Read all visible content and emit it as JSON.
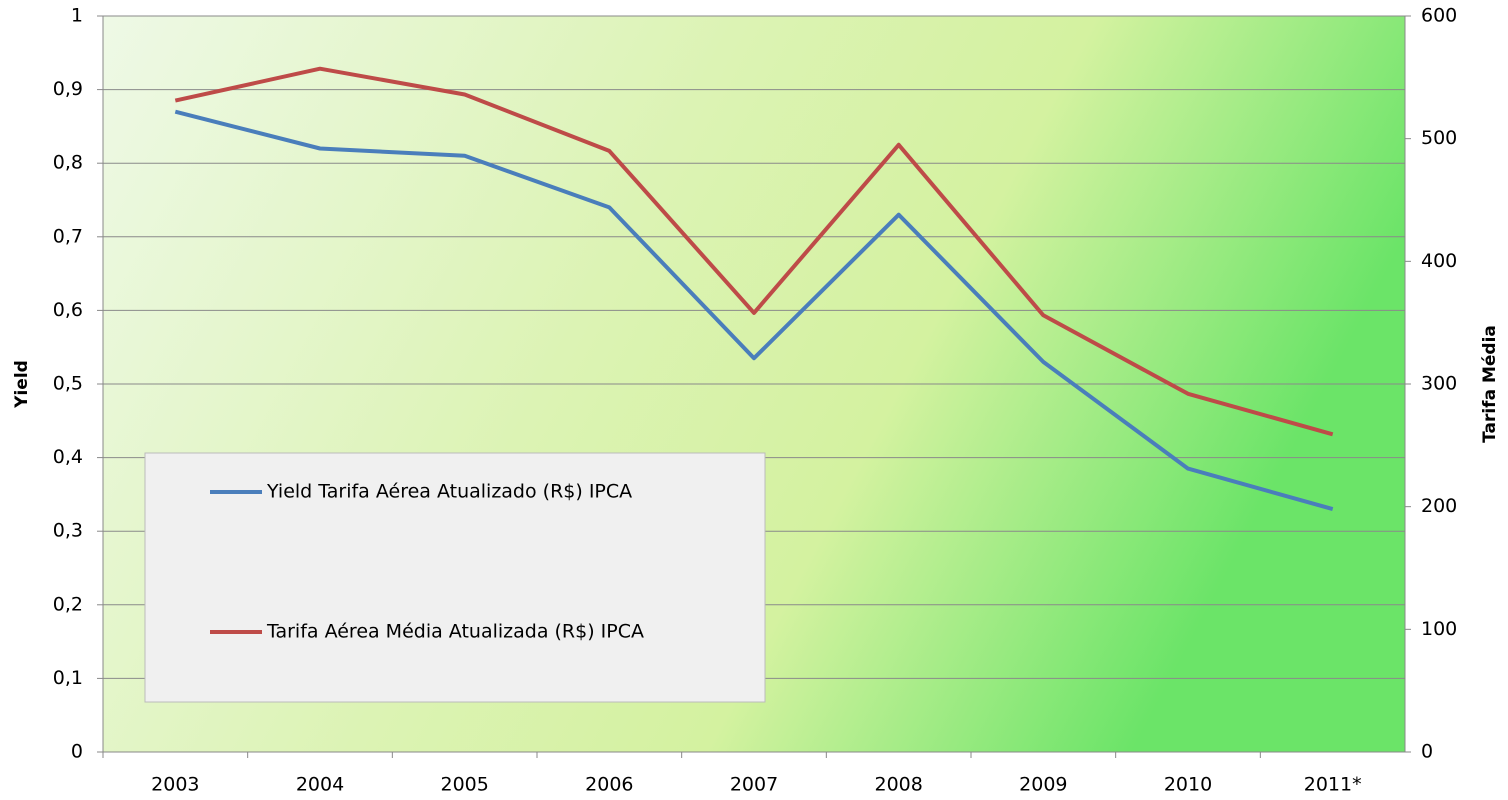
{
  "chart_data": {
    "type": "line",
    "ylabel": "Yield",
    "y2label": "Tarifa Média",
    "categories": [
      "2003",
      "2004",
      "2005",
      "2006",
      "2007",
      "2008",
      "2009",
      "2010",
      "2011*"
    ],
    "series": [
      {
        "name": "Yield Tarifa Aérea Atualizado (R$) IPCA",
        "color": "#4a7ebb",
        "values": [
          0.87,
          0.82,
          0.81,
          0.74,
          0.535,
          0.73,
          0.53,
          0.385,
          0.33
        ]
      },
      {
        "name": "Tarifa Aérea Média Atualizada (R$) IPCA",
        "color": "#be4b48",
        "axis": "y2",
        "values": [
          531,
          557,
          536,
          490,
          358,
          495,
          356,
          292,
          259
        ]
      }
    ],
    "ylim": [
      0,
      1
    ],
    "yticks": [
      0,
      {
        "value": 0.1,
        "label": "0,1"
      },
      {
        "value": 0.2,
        "label": "0,2"
      },
      {
        "value": 0.3,
        "label": "0,3"
      },
      {
        "value": 0.4,
        "label": "0,4"
      },
      {
        "value": 0.5,
        "label": "0,5"
      },
      {
        "value": 0.6,
        "label": "0,6"
      },
      {
        "value": 0.7,
        "label": "0,7"
      },
      {
        "value": 0.8,
        "label": "0,8"
      },
      {
        "value": 0.9,
        "label": "0,9"
      },
      1
    ],
    "y2lim": [
      0,
      600
    ],
    "y2ticks": [
      0,
      100,
      200,
      300,
      400,
      500,
      600
    ],
    "grid": true,
    "legend": "lower left"
  }
}
